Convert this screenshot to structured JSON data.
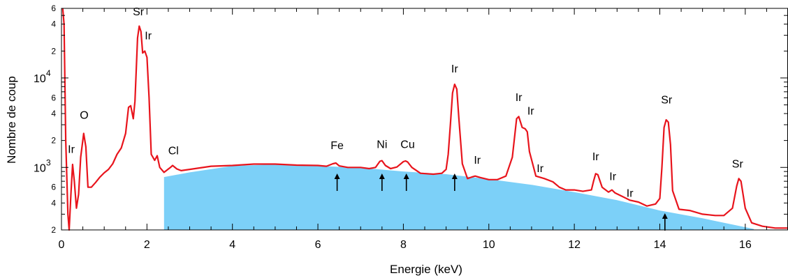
{
  "chart_data": {
    "type": "line",
    "xlabel": "Energie (keV)",
    "ylabel": "Nombre de coup",
    "xlim": [
      0,
      17
    ],
    "ylim": [
      200,
      60000
    ],
    "y_scale": "log",
    "x_ticks": [
      0,
      2,
      4,
      6,
      8,
      10,
      12,
      14,
      16
    ],
    "y_major_ticks": [
      {
        "value": 1000,
        "label": "10",
        "exp": "3"
      },
      {
        "value": 10000,
        "label": "10",
        "exp": "4"
      }
    ],
    "y_minor_labels": [
      {
        "value": 200,
        "label": "2"
      },
      {
        "value": 400,
        "label": "4"
      },
      {
        "value": 600,
        "label": "6"
      },
      {
        "value": 2000,
        "label": "2"
      },
      {
        "value": 4000,
        "label": "4"
      },
      {
        "value": 6000,
        "label": "6"
      },
      {
        "value": 20000,
        "label": "2"
      },
      {
        "value": 40000,
        "label": "4"
      },
      {
        "value": 60000,
        "label": "6"
      }
    ],
    "series": [
      {
        "color": "#e8141c",
        "points": [
          [
            0.03,
            60000
          ],
          [
            0.06,
            40000
          ],
          [
            0.1,
            2000
          ],
          [
            0.15,
            300
          ],
          [
            0.18,
            200
          ],
          [
            0.22,
            500
          ],
          [
            0.26,
            1080
          ],
          [
            0.3,
            700
          ],
          [
            0.35,
            350
          ],
          [
            0.4,
            500
          ],
          [
            0.45,
            1300
          ],
          [
            0.52,
            2400
          ],
          [
            0.57,
            1700
          ],
          [
            0.62,
            600
          ],
          [
            0.7,
            600
          ],
          [
            0.8,
            680
          ],
          [
            0.9,
            780
          ],
          [
            1.0,
            870
          ],
          [
            1.1,
            950
          ],
          [
            1.2,
            1100
          ],
          [
            1.3,
            1400
          ],
          [
            1.4,
            1650
          ],
          [
            1.5,
            2400
          ],
          [
            1.57,
            4700
          ],
          [
            1.62,
            4900
          ],
          [
            1.68,
            3500
          ],
          [
            1.72,
            5500
          ],
          [
            1.78,
            28000
          ],
          [
            1.82,
            38000
          ],
          [
            1.86,
            33000
          ],
          [
            1.9,
            19000
          ],
          [
            1.95,
            20000
          ],
          [
            2.0,
            17000
          ],
          [
            2.05,
            6000
          ],
          [
            2.1,
            1400
          ],
          [
            2.18,
            1200
          ],
          [
            2.24,
            1350
          ],
          [
            2.3,
            1000
          ],
          [
            2.4,
            880
          ],
          [
            2.55,
            1000
          ],
          [
            2.6,
            1050
          ],
          [
            2.7,
            960
          ],
          [
            2.8,
            920
          ],
          [
            3.0,
            950
          ],
          [
            3.5,
            1030
          ],
          [
            4.0,
            1050
          ],
          [
            4.5,
            1090
          ],
          [
            5.0,
            1090
          ],
          [
            5.5,
            1060
          ],
          [
            6.0,
            1050
          ],
          [
            6.2,
            1030
          ],
          [
            6.35,
            1100
          ],
          [
            6.42,
            1120
          ],
          [
            6.5,
            1040
          ],
          [
            6.7,
            1000
          ],
          [
            7.0,
            1000
          ],
          [
            7.2,
            970
          ],
          [
            7.35,
            1000
          ],
          [
            7.45,
            1170
          ],
          [
            7.5,
            1190
          ],
          [
            7.58,
            1050
          ],
          [
            7.7,
            970
          ],
          [
            7.85,
            1010
          ],
          [
            8.0,
            1160
          ],
          [
            8.05,
            1180
          ],
          [
            8.1,
            1150
          ],
          [
            8.2,
            1000
          ],
          [
            8.4,
            860
          ],
          [
            8.7,
            840
          ],
          [
            8.9,
            860
          ],
          [
            9.0,
            950
          ],
          [
            9.05,
            1400
          ],
          [
            9.1,
            3000
          ],
          [
            9.15,
            6800
          ],
          [
            9.2,
            8500
          ],
          [
            9.25,
            7500
          ],
          [
            9.3,
            3500
          ],
          [
            9.38,
            1100
          ],
          [
            9.5,
            750
          ],
          [
            9.6,
            780
          ],
          [
            9.68,
            800
          ],
          [
            9.8,
            770
          ],
          [
            10.0,
            730
          ],
          [
            10.2,
            730
          ],
          [
            10.4,
            800
          ],
          [
            10.55,
            1300
          ],
          [
            10.65,
            3500
          ],
          [
            10.7,
            3700
          ],
          [
            10.78,
            2800
          ],
          [
            10.85,
            2700
          ],
          [
            10.9,
            2500
          ],
          [
            10.95,
            1500
          ],
          [
            11.1,
            800
          ],
          [
            11.3,
            750
          ],
          [
            11.5,
            690
          ],
          [
            11.65,
            600
          ],
          [
            11.8,
            560
          ],
          [
            12.0,
            560
          ],
          [
            12.2,
            540
          ],
          [
            12.4,
            560
          ],
          [
            12.45,
            700
          ],
          [
            12.5,
            850
          ],
          [
            12.55,
            830
          ],
          [
            12.65,
            600
          ],
          [
            12.8,
            530
          ],
          [
            12.88,
            560
          ],
          [
            12.95,
            520
          ],
          [
            13.1,
            480
          ],
          [
            13.3,
            430
          ],
          [
            13.5,
            410
          ],
          [
            13.7,
            370
          ],
          [
            13.9,
            390
          ],
          [
            14.0,
            450
          ],
          [
            14.05,
            1000
          ],
          [
            14.1,
            2800
          ],
          [
            14.15,
            3400
          ],
          [
            14.2,
            3200
          ],
          [
            14.25,
            1800
          ],
          [
            14.3,
            550
          ],
          [
            14.45,
            340
          ],
          [
            14.7,
            330
          ],
          [
            15.0,
            300
          ],
          [
            15.3,
            290
          ],
          [
            15.5,
            290
          ],
          [
            15.7,
            350
          ],
          [
            15.8,
            620
          ],
          [
            15.85,
            750
          ],
          [
            15.9,
            700
          ],
          [
            16.0,
            350
          ],
          [
            16.15,
            240
          ],
          [
            16.4,
            220
          ],
          [
            16.7,
            210
          ],
          [
            17.0,
            210
          ]
        ]
      }
    ],
    "background_fill": {
      "color": "#7cd0f8",
      "points": [
        [
          2.4,
          780
        ],
        [
          3.0,
          880
        ],
        [
          4.0,
          1040
        ],
        [
          5.0,
          1080
        ],
        [
          6.0,
          1040
        ],
        [
          7.0,
          990
        ],
        [
          8.0,
          900
        ],
        [
          9.0,
          840
        ],
        [
          10.0,
          740
        ],
        [
          11.0,
          640
        ],
        [
          12.0,
          530
        ],
        [
          13.0,
          430
        ],
        [
          14.0,
          330
        ],
        [
          15.0,
          270
        ],
        [
          16.2,
          205
        ]
      ]
    },
    "annotations": [
      {
        "text": "Sr",
        "x": 1.8,
        "y": 50000,
        "size": "large"
      },
      {
        "text": "Ir",
        "x": 2.03,
        "y": 27000,
        "size": "large"
      },
      {
        "text": "O",
        "x": 0.53,
        "y": 3500,
        "size": "large"
      },
      {
        "text": "Ir",
        "x": 0.23,
        "y": 1450,
        "size": "large"
      },
      {
        "text": "Cl",
        "x": 2.62,
        "y": 1400,
        "size": "large"
      },
      {
        "text": "Fe",
        "x": 6.45,
        "y": 1600,
        "size": "large"
      },
      {
        "text": "Ni",
        "x": 7.5,
        "y": 1650,
        "size": "large"
      },
      {
        "text": "Cu",
        "x": 8.1,
        "y": 1650,
        "size": "large"
      },
      {
        "text": "Ir",
        "x": 9.2,
        "y": 11500,
        "size": "large"
      },
      {
        "text": "Ir",
        "x": 9.73,
        "y": 1100,
        "size": "large"
      },
      {
        "text": "Ir",
        "x": 10.7,
        "y": 5500,
        "size": "large"
      },
      {
        "text": "Ir",
        "x": 10.98,
        "y": 3900,
        "size": "large"
      },
      {
        "text": "Ir",
        "x": 11.2,
        "y": 890,
        "size": "large"
      },
      {
        "text": "Ir",
        "x": 12.5,
        "y": 1200,
        "size": "large"
      },
      {
        "text": "Ir",
        "x": 12.9,
        "y": 720,
        "size": "large"
      },
      {
        "text": "Ir",
        "x": 13.3,
        "y": 470,
        "size": "large"
      },
      {
        "text": "Sr",
        "x": 14.16,
        "y": 5200,
        "size": "large"
      },
      {
        "text": "Sr",
        "x": 15.82,
        "y": 1000,
        "size": "large"
      }
    ],
    "arrows": [
      6.45,
      7.5,
      8.07,
      9.2,
      14.12
    ],
    "grid": false,
    "legend": "none"
  }
}
